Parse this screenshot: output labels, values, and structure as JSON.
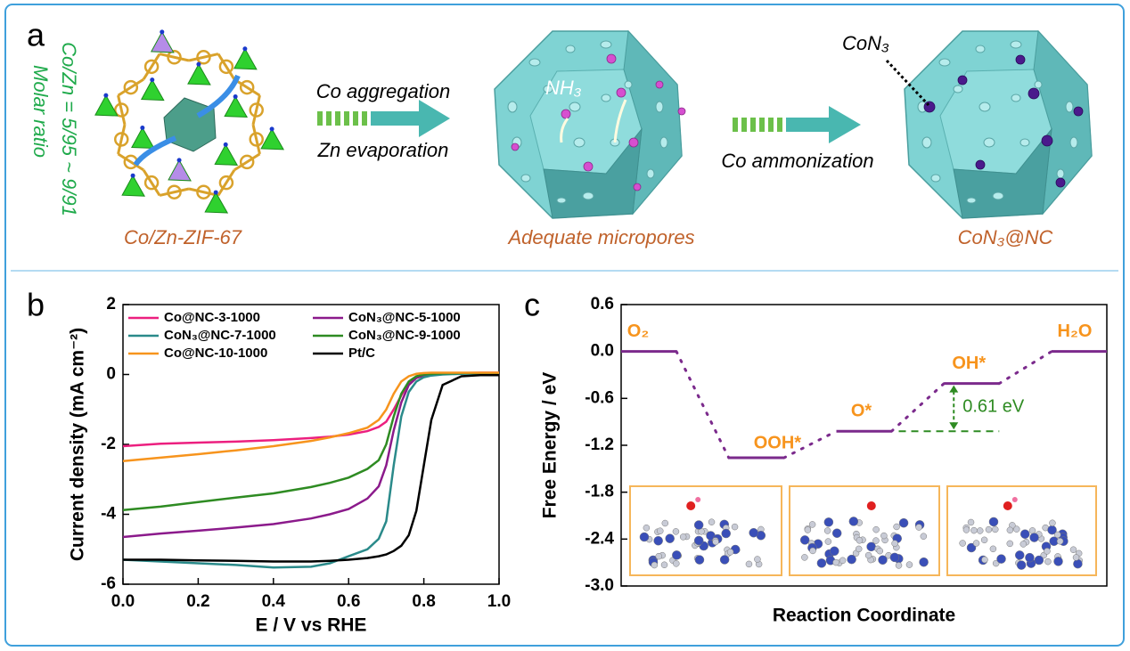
{
  "panel_labels": [
    "a",
    "b",
    "c"
  ],
  "scheme": {
    "ratio": "Co/Zn = 5/95 ~ 9/91",
    "ratio_label": "Molar ratio",
    "precursor": "Co/Zn-ZIF-67",
    "step1_top": "Co aggregation",
    "step1_bottom": "Zn evaporation",
    "gas": "NH₃",
    "intermediate": "Adequate micropores",
    "step2": "Co ammonization",
    "site": "CoN₃",
    "product": "CoN₃@NC"
  },
  "chart_data": [
    {
      "type": "line",
      "xlabel": "E / V vs RHE",
      "ylabel": "Current density (mA cm⁻²)",
      "x": [
        0,
        0.1,
        0.2,
        0.3,
        0.4,
        0.5,
        0.55,
        0.6,
        0.65,
        0.68,
        0.7,
        0.72,
        0.74,
        0.76,
        0.78,
        0.8,
        0.82,
        0.85,
        0.9,
        0.95,
        1.0
      ],
      "xlim": [
        0,
        1
      ],
      "ylim": [
        -6,
        2
      ],
      "xticks": [
        {
          "value": 0,
          "label": "0.0"
        },
        0.2,
        0.4,
        0.6,
        0.8,
        {
          "value": 1,
          "label": "1.0"
        }
      ],
      "yticks": [
        -6,
        -4,
        -2,
        0,
        2
      ],
      "series": [
        {
          "name": "Co@NC-3-1000",
          "color": "#ec1f7f",
          "values": [
            -2.05,
            -1.98,
            -1.95,
            -1.92,
            -1.88,
            -1.82,
            -1.78,
            -1.72,
            -1.62,
            -1.5,
            -1.35,
            -1.0,
            -0.6,
            -0.25,
            -0.08,
            0,
            0.02,
            0.03,
            0.04,
            0.05,
            0.05
          ]
        },
        {
          "name": "CoN₃@NC-5-1000",
          "color": "#8b1a8b",
          "values": [
            -4.65,
            -4.55,
            -4.47,
            -4.38,
            -4.28,
            -4.12,
            -4.0,
            -3.85,
            -3.55,
            -3.2,
            -2.6,
            -1.6,
            -0.8,
            -0.3,
            -0.1,
            -0.03,
            0,
            0.02,
            0.03,
            0.04,
            0.04
          ]
        },
        {
          "name": "CoN₃@NC-7-1000",
          "color": "#2a8a8a",
          "values": [
            -5.3,
            -5.35,
            -5.4,
            -5.45,
            -5.52,
            -5.5,
            -5.4,
            -5.2,
            -5.0,
            -4.7,
            -4.2,
            -2.6,
            -1.2,
            -0.5,
            -0.2,
            -0.08,
            -0.03,
            0,
            0.02,
            0.03,
            0.03
          ]
        },
        {
          "name": "CoN₃@NC-9-1000",
          "color": "#2e8b22",
          "values": [
            -3.88,
            -3.78,
            -3.65,
            -3.52,
            -3.4,
            -3.22,
            -3.1,
            -2.95,
            -2.7,
            -2.45,
            -2.0,
            -1.2,
            -0.55,
            -0.2,
            -0.05,
            0,
            0.02,
            0.03,
            0.04,
            0.04,
            0.04
          ]
        },
        {
          "name": "Co@NC-10-1000",
          "color": "#f7941d",
          "values": [
            -2.48,
            -2.38,
            -2.28,
            -2.17,
            -2.05,
            -1.9,
            -1.8,
            -1.68,
            -1.52,
            -1.3,
            -1.0,
            -0.55,
            -0.2,
            -0.05,
            0.02,
            0.04,
            0.05,
            0.05,
            0.05,
            0.05,
            0.05
          ]
        },
        {
          "name": "Pt/C",
          "color": "#000000",
          "values": [
            -5.3,
            -5.3,
            -5.32,
            -5.33,
            -5.35,
            -5.35,
            -5.33,
            -5.3,
            -5.25,
            -5.2,
            -5.15,
            -5.05,
            -4.9,
            -4.6,
            -3.9,
            -2.6,
            -1.3,
            -0.3,
            -0.05,
            -0.02,
            -0.02
          ]
        }
      ]
    },
    {
      "type": "energy_levels",
      "xlabel": "Reaction Coordinate",
      "ylabel": "Free Energy / eV",
      "categories": [
        "O₂",
        "OOH*",
        "O*",
        "OH*",
        "H₂O"
      ],
      "values": [
        0.0,
        -1.36,
        -1.02,
        -0.41,
        0.0
      ],
      "color": "#7b2a8c",
      "label_color": "#f7941d",
      "ylim": [
        -3.0,
        0.6
      ],
      "yticks": [
        0.6,
        {
          "value": 0,
          "label": "0.0"
        },
        -0.6,
        -1.2,
        -1.8,
        -2.4,
        {
          "value": -3,
          "label": "-3.0"
        }
      ],
      "annotation": "0.61 eV",
      "annotation_color": "#2e8b22"
    }
  ]
}
